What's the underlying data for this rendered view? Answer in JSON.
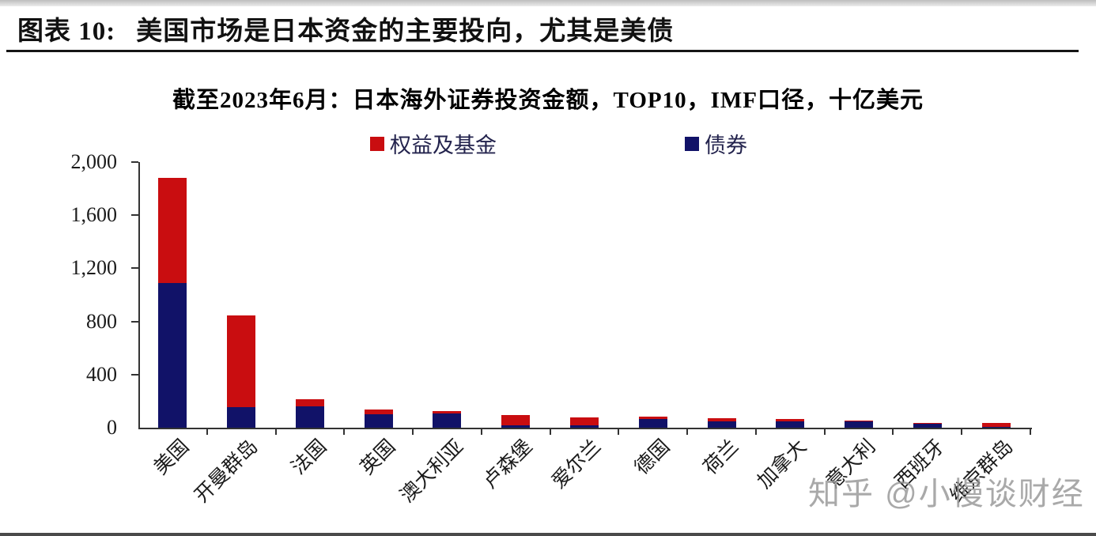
{
  "header": {
    "label": "图表 10:",
    "title": "美国市场是日本资金的主要投向，尤其是美债"
  },
  "watermark": "知乎 @小慢谈财经",
  "chart_data": {
    "type": "bar",
    "stacked": true,
    "title": "截至2023年6月：日本海外证券投资金额，TOP10，IMF口径，十亿美元",
    "categories": [
      "美国",
      "开曼群岛",
      "法国",
      "英国",
      "澳大利亚",
      "卢森堡",
      "爱尔兰",
      "德国",
      "荷兰",
      "加拿大",
      "意大利",
      "西班牙",
      "维京群岛"
    ],
    "series": [
      {
        "name": "债券",
        "color": "#111268",
        "values": [
          1090,
          155,
          160,
          100,
          105,
          15,
          15,
          65,
          50,
          45,
          50,
          32,
          5
        ]
      },
      {
        "name": "权益及基金",
        "color": "#C90D10",
        "values": [
          790,
          690,
          55,
          35,
          20,
          80,
          65,
          20,
          22,
          20,
          5,
          6,
          30
        ]
      }
    ],
    "totals": [
      1880,
      845,
      215,
      135,
      125,
      95,
      80,
      85,
      72,
      65,
      55,
      38,
      35
    ],
    "legend": [
      {
        "label": "权益及基金",
        "color": "#C90D10"
      },
      {
        "label": "债券",
        "color": "#111268"
      }
    ],
    "unit": "十亿美元",
    "ylim": [
      0,
      2000
    ],
    "yticks": [
      0,
      400,
      800,
      1200,
      1600,
      2000
    ],
    "ytick_labels": [
      "0",
      "400",
      "800",
      "1,200",
      "1,600",
      "2,000"
    ],
    "legend_position": "top",
    "grid": false
  }
}
